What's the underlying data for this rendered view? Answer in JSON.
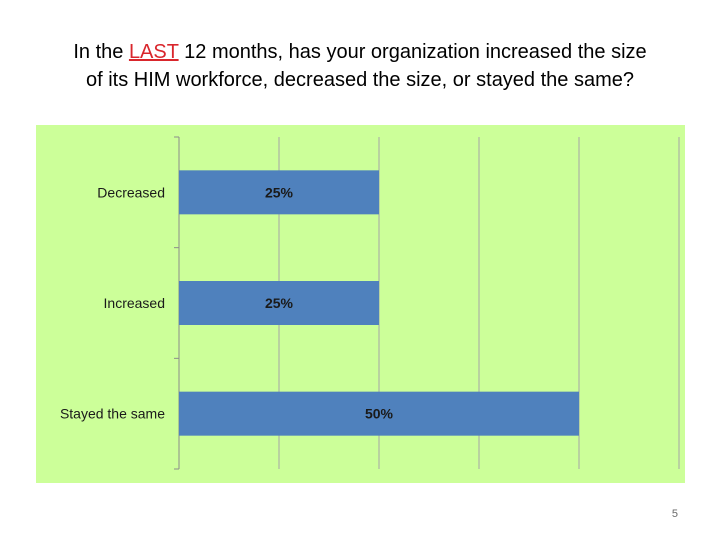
{
  "slide": {
    "title_part1": "In the ",
    "title_emphasis": "LAST",
    "title_part2": " 12 months, has your organization increased the size",
    "title_line2": "of its HIM workforce, decreased the size, or stayed the same?",
    "page_number": "5"
  },
  "colors": {
    "background": "#ccff99",
    "bar": "#4f81bd",
    "emphasis": "#d9262c"
  },
  "chart_data": {
    "type": "bar",
    "orientation": "horizontal",
    "categories": [
      "Decreased",
      "Increased",
      "Stayed the same"
    ],
    "values": [
      25,
      25,
      50
    ],
    "data_labels": [
      "25%",
      "25%",
      "50%"
    ],
    "xlim": [
      0,
      62.5
    ],
    "grid": true,
    "title": "",
    "xlabel": "",
    "ylabel": ""
  }
}
